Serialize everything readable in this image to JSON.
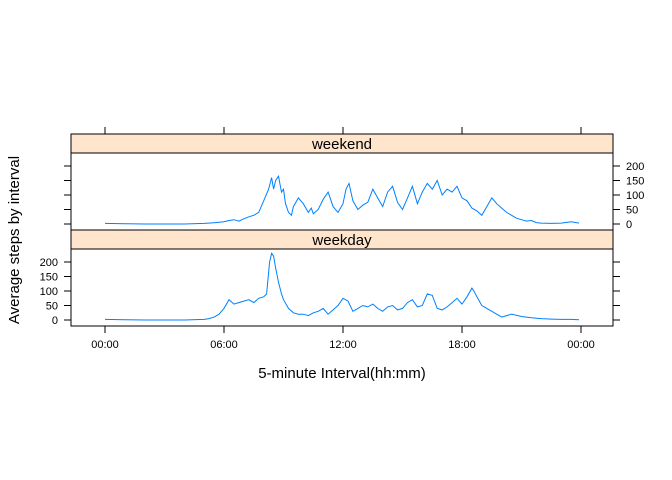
{
  "chart_data": {
    "type": "line",
    "xlabel": "5-minute Interval(hh:mm)",
    "ylabel": "Average steps by interval",
    "x_ticks": [
      "00:00",
      "06:00",
      "12:00",
      "18:00",
      "00:00"
    ],
    "x_tick_values": [
      0,
      6,
      12,
      18,
      24
    ],
    "x_unit": "hour of day",
    "xlim": [
      0,
      24
    ],
    "y_ticks": [
      0,
      50,
      100,
      150,
      200
    ],
    "ylim": [
      0,
      230
    ],
    "colors": {
      "line": "#0080ff",
      "strip": "#ffe5cc"
    },
    "panels": [
      {
        "name": "weekend",
        "y_axis_side": "right",
        "x": [
          0,
          1,
          2,
          3,
          4,
          5,
          5.5,
          5.75,
          6,
          6.25,
          6.5,
          6.75,
          7,
          7.25,
          7.5,
          7.75,
          8,
          8.25,
          8.4,
          8.5,
          8.6,
          8.75,
          8.9,
          9,
          9.1,
          9.25,
          9.4,
          9.5,
          9.75,
          10,
          10.25,
          10.4,
          10.5,
          10.75,
          11,
          11.25,
          11.5,
          11.75,
          12,
          12.15,
          12.3,
          12.5,
          12.75,
          13,
          13.25,
          13.5,
          13.75,
          14,
          14.25,
          14.5,
          14.75,
          15,
          15.25,
          15.5,
          15.75,
          16,
          16.25,
          16.5,
          16.75,
          17,
          17.25,
          17.5,
          17.75,
          18,
          18.25,
          18.5,
          18.75,
          19,
          19.25,
          19.5,
          19.75,
          20,
          20.25,
          20.5,
          20.75,
          21,
          21.25,
          21.5,
          21.75,
          22,
          22.5,
          23,
          23.5,
          23.9
        ],
        "y": [
          2,
          1,
          0,
          0,
          0,
          2,
          4,
          6,
          8,
          12,
          15,
          10,
          18,
          25,
          30,
          40,
          80,
          120,
          160,
          120,
          150,
          165,
          110,
          120,
          70,
          40,
          30,
          60,
          90,
          70,
          40,
          55,
          35,
          50,
          85,
          110,
          60,
          40,
          70,
          120,
          140,
          80,
          50,
          65,
          75,
          120,
          90,
          60,
          110,
          130,
          75,
          50,
          90,
          130,
          70,
          110,
          140,
          120,
          150,
          100,
          120,
          110,
          130,
          90,
          80,
          55,
          45,
          30,
          60,
          90,
          70,
          55,
          40,
          30,
          20,
          15,
          10,
          12,
          5,
          3,
          2,
          3,
          8,
          3
        ]
      },
      {
        "name": "weekday",
        "y_axis_side": "left",
        "x": [
          0,
          1,
          2,
          3,
          4,
          5,
          5.25,
          5.5,
          5.75,
          6,
          6.25,
          6.5,
          6.75,
          7,
          7.25,
          7.5,
          7.75,
          8,
          8.15,
          8.3,
          8.4,
          8.5,
          8.6,
          8.75,
          8.9,
          9,
          9.25,
          9.5,
          9.75,
          10,
          10.25,
          10.5,
          10.75,
          11,
          11.25,
          11.5,
          11.75,
          12,
          12.25,
          12.5,
          12.75,
          13,
          13.25,
          13.5,
          13.75,
          14,
          14.25,
          14.5,
          14.75,
          15,
          15.25,
          15.5,
          15.75,
          16,
          16.25,
          16.5,
          16.75,
          17,
          17.25,
          17.5,
          17.75,
          18,
          18.25,
          18.5,
          18.6,
          18.75,
          19,
          19.25,
          19.5,
          19.75,
          20,
          20.25,
          20.5,
          21,
          21.5,
          22,
          22.5,
          23,
          23.5,
          23.9
        ],
        "y": [
          2,
          1,
          0,
          0,
          0,
          2,
          5,
          10,
          20,
          40,
          70,
          55,
          60,
          65,
          70,
          60,
          75,
          80,
          90,
          200,
          230,
          220,
          180,
          130,
          90,
          70,
          40,
          25,
          20,
          20,
          15,
          25,
          30,
          40,
          20,
          35,
          50,
          75,
          65,
          30,
          40,
          50,
          45,
          55,
          40,
          30,
          45,
          50,
          35,
          40,
          60,
          70,
          45,
          50,
          90,
          85,
          40,
          35,
          45,
          60,
          75,
          55,
          80,
          110,
          100,
          80,
          50,
          40,
          30,
          20,
          10,
          15,
          20,
          12,
          8,
          5,
          3,
          2,
          2,
          1
        ]
      }
    ]
  }
}
